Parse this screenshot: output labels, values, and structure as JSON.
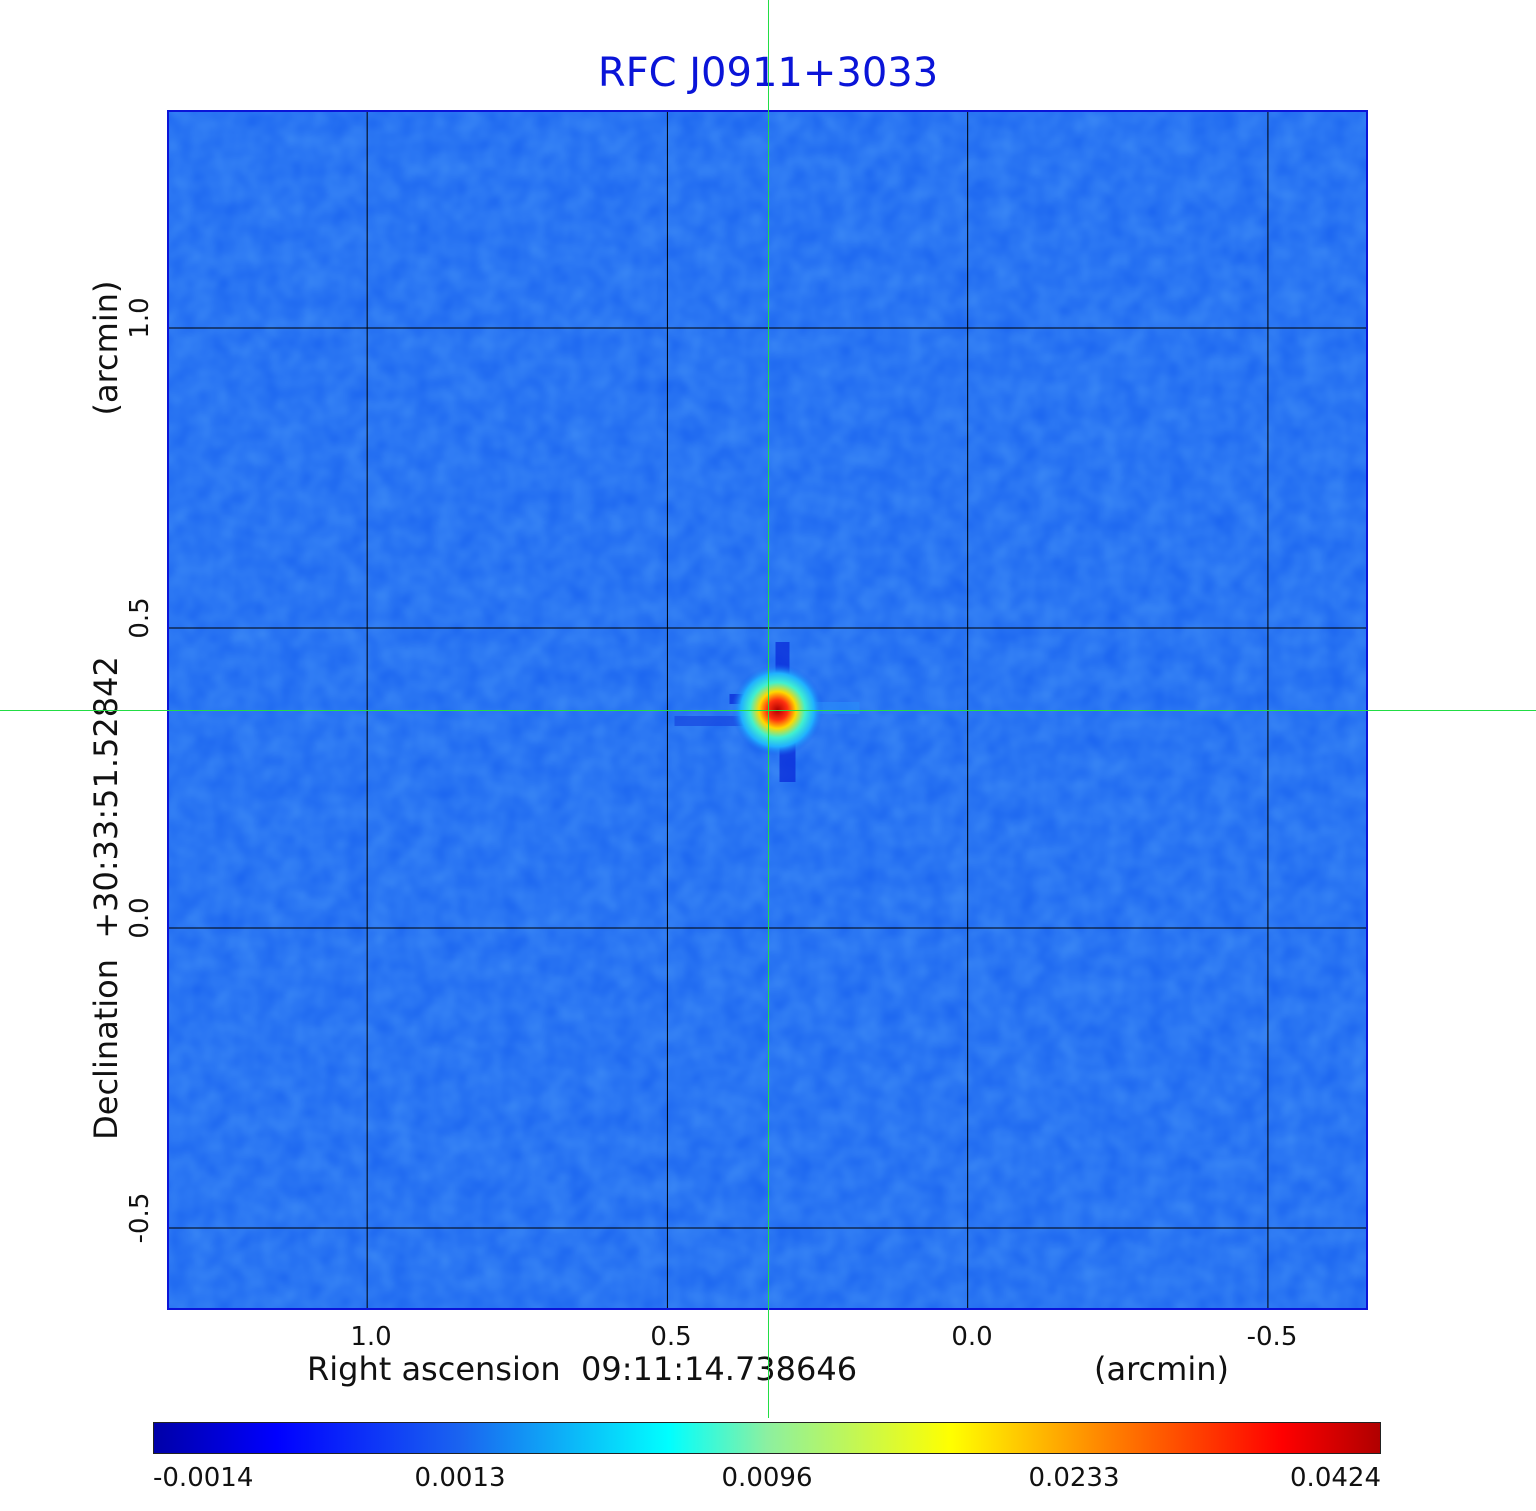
{
  "chart_data": {
    "type": "heatmap",
    "title": "RFC J0911+3033",
    "xlabel": "Right ascension  09:11:14.738646",
    "xunit": "(arcmin)",
    "ylabel": "Declination  +30:33:51.52842",
    "yunit": "(arcmin)",
    "xlim": [
      1.33,
      -0.67
    ],
    "ylim": [
      -0.64,
      1.36
    ],
    "x_ticks": [
      {
        "value": 1.0,
        "label": "1.0"
      },
      {
        "value": 0.5,
        "label": "0.5"
      },
      {
        "value": 0.0,
        "label": "0.0"
      },
      {
        "value": -0.5,
        "label": "-0.5"
      }
    ],
    "y_ticks": [
      {
        "value": 1.0,
        "label": "1.0"
      },
      {
        "value": 0.5,
        "label": "0.5"
      },
      {
        "value": 0.0,
        "label": "0.0"
      },
      {
        "value": -0.5,
        "label": "-0.5"
      }
    ],
    "grid": true,
    "source_peak": {
      "x": 0.33,
      "y": 0.36,
      "value": 0.0424
    },
    "crosshair": {
      "x": 0.33,
      "y": 0.36
    },
    "colorbar": {
      "range": [
        -0.0014,
        0.0424
      ],
      "ticks": [
        {
          "value": -0.0014,
          "label": "-0.0014"
        },
        {
          "value": 0.0013,
          "label": "0.0013"
        },
        {
          "value": 0.0096,
          "label": "0.0096"
        },
        {
          "value": 0.0233,
          "label": "0.0233"
        },
        {
          "value": 0.0424,
          "label": "0.0424"
        }
      ],
      "colormap": "jet"
    }
  },
  "colors": {
    "title": "#0a14d8",
    "frame": "#0a14d8",
    "background_field": "#1a64f0",
    "crosshair": "#22dd44",
    "grid": "#000000"
  }
}
